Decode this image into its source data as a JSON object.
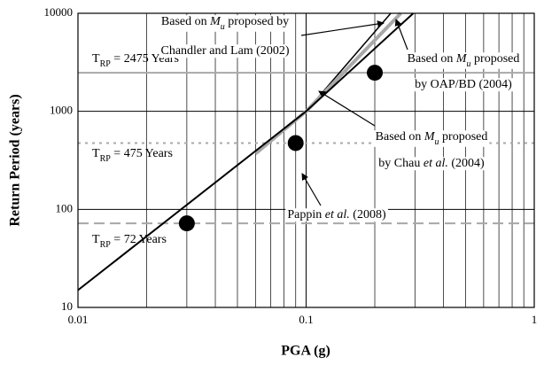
{
  "chart_data": {
    "type": "line",
    "x_label": "PGA (g)",
    "y_label": "Return Period (years)",
    "xscale": "log",
    "yscale": "log",
    "xlim": [
      0.01,
      1
    ],
    "ylim": [
      10,
      10000
    ],
    "xticks": [
      0.01,
      0.1,
      1
    ],
    "xminorticks": [
      0.02,
      0.03,
      0.04,
      0.05,
      0.06,
      0.07,
      0.08,
      0.09,
      0.2,
      0.3,
      0.4,
      0.5,
      0.6,
      0.7,
      0.8,
      0.9
    ],
    "yticks": [
      10,
      100,
      1000,
      10000
    ],
    "grid": true,
    "series": [
      {
        "color": "#000000",
        "width": 1.5,
        "x": [
          0.01,
          0.1,
          0.235
        ],
        "values": [
          15,
          1000,
          10000
        ]
      },
      {
        "color": "#a8a8a8",
        "width": 4,
        "x": [
          0.06,
          0.1,
          0.26
        ],
        "values": [
          370,
          1000,
          10000
        ]
      },
      {
        "color": "#000000",
        "width": 2,
        "x": [
          0.01,
          0.1,
          0.295
        ],
        "values": [
          15,
          1000,
          10000
        ]
      }
    ],
    "points": {
      "color": "#000000",
      "x": [
        0.03,
        0.09,
        0.2
      ],
      "values": [
        72,
        475,
        2475
      ]
    },
    "reference_lines": [
      {
        "value": 2475,
        "style": "solid",
        "color": "#a8a8a8",
        "parts": [
          "T",
          {
            "text": "RP",
            "style": "sub"
          },
          " = 2475 Years"
        ]
      },
      {
        "value": 475,
        "style": "dotted",
        "color": "#a8a8a8",
        "parts": [
          "T",
          {
            "text": "RP",
            "style": "sub"
          },
          " = 475 Years"
        ]
      },
      {
        "value": 72,
        "style": "dashed",
        "color": "#a8a8a8",
        "parts": [
          "T",
          {
            "text": "RP",
            "style": "sub"
          },
          " = 72 Years"
        ]
      }
    ],
    "annotations": [
      {
        "lines": [
          [
            "Based on ",
            {
              "text": "M",
              "style": "italic"
            },
            {
              "text": "u",
              "style": "italic-sub"
            },
            " proposed by"
          ],
          [
            "Chandler and Lam (2002)"
          ]
        ]
      },
      {
        "lines": [
          [
            "Based on ",
            {
              "text": "M",
              "style": "italic"
            },
            {
              "text": "u",
              "style": "italic-sub"
            },
            " proposed"
          ],
          [
            "by OAP/BD (2004)"
          ]
        ]
      },
      {
        "lines": [
          [
            "Based on ",
            {
              "text": "M",
              "style": "italic"
            },
            {
              "text": "u",
              "style": "italic-sub"
            },
            " proposed"
          ],
          [
            "by Chau ",
            {
              "text": "et al.",
              "style": "italic"
            },
            " (2004)"
          ]
        ]
      },
      {
        "lines": [
          [
            "Pappin ",
            {
              "text": "et al.",
              "style": "italic"
            },
            " (2008)"
          ]
        ]
      }
    ]
  }
}
